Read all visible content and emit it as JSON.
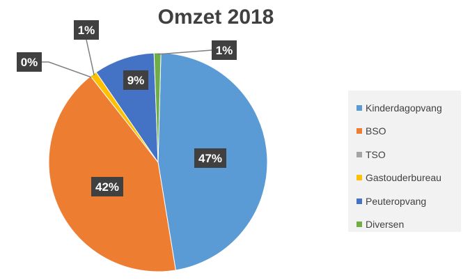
{
  "chart_data": {
    "type": "pie",
    "title": "Omzet 2018",
    "categories": [
      "Kinderdagopvang",
      "BSO",
      "TSO",
      "Gastouderbureau",
      "Peuteropvang",
      "Diversen"
    ],
    "values": [
      47,
      42,
      0,
      1,
      9,
      1
    ],
    "data_labels": [
      "47%",
      "42%",
      "0%",
      "1%",
      "9%",
      "1%"
    ],
    "colors": [
      "#5b9bd5",
      "#ed7d31",
      "#a5a5a5",
      "#ffc000",
      "#4472c4",
      "#70ad47"
    ],
    "legend_position": "right"
  }
}
